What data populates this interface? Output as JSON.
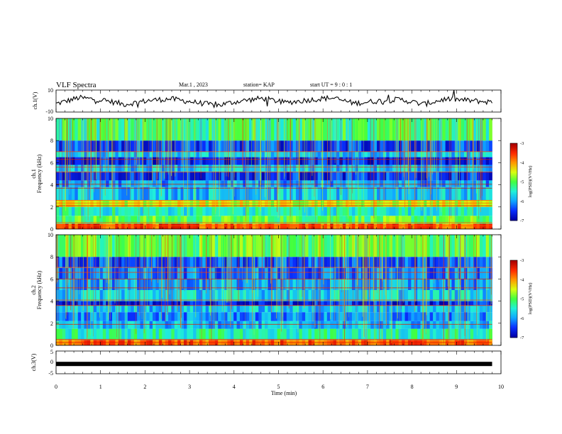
{
  "header": {
    "title": "VLF Spectra",
    "date": "Mar.1  , 2023",
    "station": "station= KAP",
    "start": "start  UT  =   9 : 0  : 1"
  },
  "colors": {
    "trace": "#000000",
    "colormap": [
      "#0000a8",
      "#0a30ff",
      "#10a8ff",
      "#20f0d8",
      "#40ff40",
      "#d8ff10",
      "#ff9a00",
      "#ff2a00",
      "#a80000"
    ]
  },
  "chart_data": [
    {
      "type": "line",
      "panel": "ch1-waveform",
      "ylabel": "ch.1(V)",
      "ylim": [
        -10,
        10
      ],
      "ytick_labels": [
        "10",
        "-10"
      ],
      "xlim": [
        0,
        10
      ],
      "x_end": 9.8,
      "series": [
        {
          "values": [
            -2.5,
            3,
            1,
            -3,
            0.5,
            2,
            -1,
            -4,
            0,
            2.5,
            -1.5,
            1,
            3,
            -2,
            0,
            1.5,
            -3,
            2,
            0.5,
            -1
          ]
        }
      ]
    },
    {
      "type": "heatmap",
      "panel": "ch1-spectrogram",
      "ylabel": "ch.1",
      "ylabel2": "Frequency  (kHz)",
      "ylim": [
        0,
        10
      ],
      "ytick_labels": [
        "0",
        "2",
        "4",
        "6",
        "8",
        "10"
      ],
      "xlim": [
        0,
        10
      ],
      "x_end": 9.8,
      "colorbar": {
        "label": "log(PSD)(V²/Hz)",
        "range": [
          -7,
          -3
        ],
        "tick_labels": [
          "-3",
          "-4",
          "-5",
          "-6",
          "-7"
        ]
      },
      "bands": [
        {
          "f": [
            0,
            0.5
          ],
          "level": 0.85
        },
        {
          "f": [
            0.5,
            1.2
          ],
          "level": 0.5
        },
        {
          "f": [
            1.2,
            2.0
          ],
          "level": 0.38
        },
        {
          "f": [
            2.0,
            2.6
          ],
          "level": 0.62
        },
        {
          "f": [
            2.6,
            3.8
          ],
          "level": 0.3
        },
        {
          "f": [
            3.8,
            4.4
          ],
          "level": 0.25
        },
        {
          "f": [
            4.4,
            5.2
          ],
          "level": 0.12
        },
        {
          "f": [
            5.2,
            5.8
          ],
          "level": 0.3
        },
        {
          "f": [
            5.8,
            6.5
          ],
          "level": 0.1
        },
        {
          "f": [
            6.5,
            7.0
          ],
          "level": 0.3
        },
        {
          "f": [
            7.0,
            8.0
          ],
          "level": 0.14
        },
        {
          "f": [
            8.0,
            10.0
          ],
          "level": 0.45
        }
      ],
      "lines_khz": [
        0.3,
        0.6,
        2.1,
        2.35,
        2.6,
        3.7,
        4.05,
        5.15,
        5.6,
        6.3,
        7.0
      ]
    },
    {
      "type": "heatmap",
      "panel": "ch2-spectrogram",
      "ylabel": "ch.2",
      "ylabel2": "Frequency  (kHz)",
      "ylim": [
        0,
        10
      ],
      "ytick_labels": [
        "0",
        "2",
        "4",
        "6",
        "8",
        "10"
      ],
      "xlim": [
        0,
        10
      ],
      "x_end": 9.8,
      "colorbar": {
        "label": "log(PSD)(V²/Hz)",
        "range": [
          -7,
          -3
        ],
        "tick_labels": [
          "-3",
          "-4",
          "-5",
          "-6",
          "-7"
        ]
      },
      "bands": [
        {
          "f": [
            0,
            0.5
          ],
          "level": 0.82
        },
        {
          "f": [
            0.5,
            1.5
          ],
          "level": 0.4
        },
        {
          "f": [
            1.5,
            2.2
          ],
          "level": 0.28
        },
        {
          "f": [
            2.2,
            3.0
          ],
          "level": 0.22
        },
        {
          "f": [
            3.0,
            3.6
          ],
          "level": 0.3
        },
        {
          "f": [
            3.6,
            4.0
          ],
          "level": 0.1
        },
        {
          "f": [
            4.0,
            5.0
          ],
          "level": 0.32
        },
        {
          "f": [
            5.0,
            6.0
          ],
          "level": 0.25
        },
        {
          "f": [
            6.0,
            7.0
          ],
          "level": 0.2
        },
        {
          "f": [
            7.0,
            8.0
          ],
          "level": 0.16
        },
        {
          "f": [
            8.0,
            10.0
          ],
          "level": 0.5
        }
      ],
      "lines_khz": [
        0.25,
        0.55,
        1.9,
        3.6,
        4.1,
        5.2,
        6.0,
        6.6,
        7.05
      ]
    },
    {
      "type": "line",
      "panel": "ch3-waveform",
      "ylabel": "ch.3(V)",
      "ylim": [
        -5,
        5
      ],
      "ytick_labels": [
        "5",
        "0",
        "-5"
      ],
      "xlim": [
        0,
        10
      ],
      "x_end": 9.8,
      "series": [
        {
          "values": [
            -0.7,
            -0.7
          ]
        }
      ]
    }
  ],
  "x_axis": {
    "label": "Time  (min)",
    "tick_labels": [
      "0",
      "1",
      "2",
      "3",
      "4",
      "5",
      "6",
      "7",
      "8",
      "9",
      "10"
    ]
  }
}
